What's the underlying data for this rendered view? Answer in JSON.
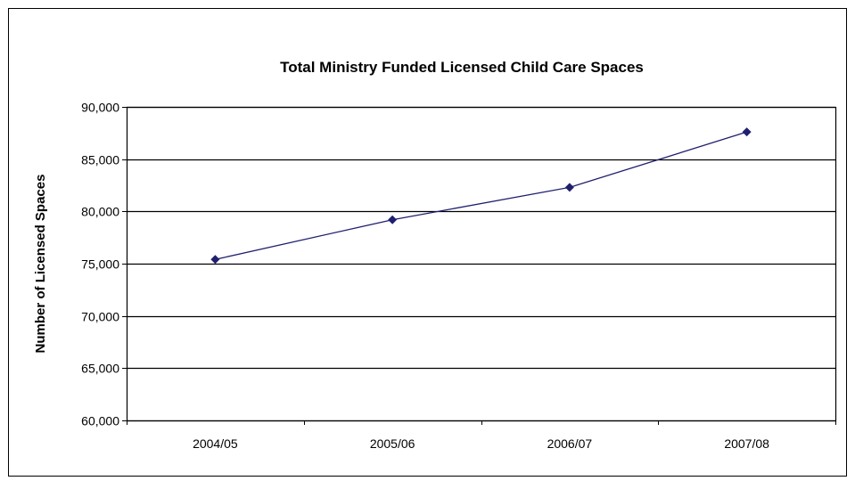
{
  "chart_data": {
    "type": "line",
    "title": "Total Ministry Funded Licensed Child Care Spaces",
    "xlabel": "",
    "ylabel": "Number of Licensed Spaces",
    "categories": [
      "2004/05",
      "2005/06",
      "2006/07",
      "2007/08"
    ],
    "series": [
      {
        "values": [
          75400,
          79200,
          82300,
          87600
        ]
      }
    ],
    "ylim": [
      60000,
      90000
    ],
    "yticks": [
      60000,
      65000,
      70000,
      75000,
      80000,
      85000,
      90000
    ],
    "ytick_labels": [
      "60,000",
      "65,000",
      "70,000",
      "75,000",
      "80,000",
      "85,000",
      "90,000"
    ],
    "grid": "horizontal",
    "legend": "none",
    "colors": {
      "series": "#1f1f6e",
      "grid": "#000000",
      "frame": "#000000"
    }
  }
}
